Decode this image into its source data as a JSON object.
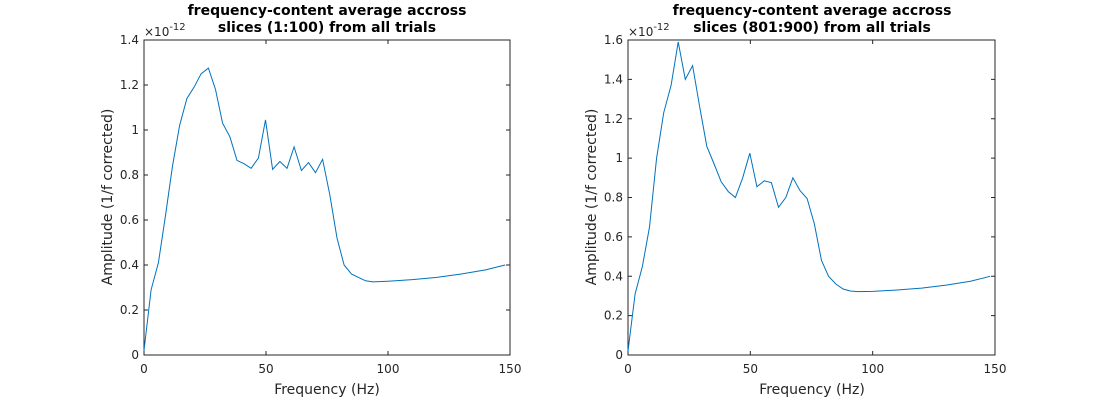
{
  "chart_data": [
    {
      "type": "line",
      "title": [
        "frequency-content average accross",
        "slices (1:100) from all trials"
      ],
      "xlabel": "Frequency (Hz)",
      "ylabel": "Amplitude (1/f corrected)",
      "y_multiplier": "×10",
      "y_exponent": "-12",
      "xlim": [
        0,
        150
      ],
      "ylim": [
        0,
        1.4
      ],
      "xticks": [
        "0",
        "50",
        "100",
        "150"
      ],
      "yticks": [
        "0",
        "0.2",
        "0.4",
        "0.6",
        "0.8",
        "1",
        "1.2",
        "1.4"
      ],
      "xtick_values": [
        0,
        50,
        100,
        150
      ],
      "ytick_values": [
        0,
        0.2,
        0.4,
        0.6,
        0.8,
        1.0,
        1.2,
        1.4
      ],
      "grid": false,
      "line_color": "#0072BD",
      "series": [
        {
          "x": [
            0,
            2.9,
            5.9,
            8.8,
            11.7,
            14.6,
            17.6,
            20.5,
            23.4,
            26.4,
            29.3,
            32.2,
            35.2,
            38.1,
            41.0,
            43.9,
            46.9,
            49.8,
            52.7,
            55.7,
            58.6,
            61.5,
            64.5,
            67.4,
            70.3,
            73.2,
            76.2,
            79.1,
            82.0,
            85.0,
            87.9,
            90.8,
            93.8,
            100,
            110,
            120,
            130,
            140,
            148
          ],
          "y": [
            0.02,
            0.29,
            0.41,
            0.62,
            0.84,
            1.02,
            1.14,
            1.19,
            1.25,
            1.275,
            1.18,
            1.03,
            0.97,
            0.865,
            0.85,
            0.83,
            0.875,
            1.045,
            0.825,
            0.86,
            0.83,
            0.925,
            0.82,
            0.855,
            0.81,
            0.87,
            0.71,
            0.52,
            0.4,
            0.36,
            0.345,
            0.33,
            0.325,
            0.328,
            0.335,
            0.345,
            0.36,
            0.378,
            0.4
          ]
        }
      ]
    },
    {
      "type": "line",
      "title": [
        "frequency-content average accross",
        "slices (801:900) from all trials"
      ],
      "xlabel": "Frequency (Hz)",
      "ylabel": "Amplitude (1/f corrected)",
      "y_multiplier": "×10",
      "y_exponent": "-12",
      "xlim": [
        0,
        150
      ],
      "ylim": [
        0,
        1.6
      ],
      "xticks": [
        "0",
        "50",
        "100",
        "150"
      ],
      "yticks": [
        "0",
        "0.2",
        "0.4",
        "0.6",
        "0.8",
        "1",
        "1.2",
        "1.4",
        "1.6"
      ],
      "xtick_values": [
        0,
        50,
        100,
        150
      ],
      "ytick_values": [
        0,
        0.2,
        0.4,
        0.6,
        0.8,
        1.0,
        1.2,
        1.4,
        1.6
      ],
      "grid": false,
      "line_color": "#0072BD",
      "series": [
        {
          "x": [
            0,
            2.9,
            5.9,
            8.8,
            11.7,
            14.6,
            17.6,
            20.5,
            23.4,
            26.4,
            29.3,
            32.2,
            35.2,
            38.1,
            41.0,
            43.9,
            46.9,
            49.8,
            52.7,
            55.7,
            58.6,
            61.5,
            64.5,
            67.4,
            70.3,
            73.2,
            76.2,
            79.1,
            82.0,
            85.0,
            87.9,
            90.8,
            93.8,
            100,
            110,
            120,
            130,
            140,
            148
          ],
          "y": [
            0.02,
            0.31,
            0.45,
            0.65,
            1.0,
            1.23,
            1.37,
            1.59,
            1.4,
            1.47,
            1.26,
            1.06,
            0.97,
            0.88,
            0.83,
            0.8,
            0.9,
            1.025,
            0.855,
            0.885,
            0.875,
            0.75,
            0.8,
            0.9,
            0.835,
            0.795,
            0.665,
            0.48,
            0.4,
            0.36,
            0.335,
            0.325,
            0.322,
            0.323,
            0.33,
            0.34,
            0.355,
            0.375,
            0.4
          ]
        }
      ]
    }
  ]
}
